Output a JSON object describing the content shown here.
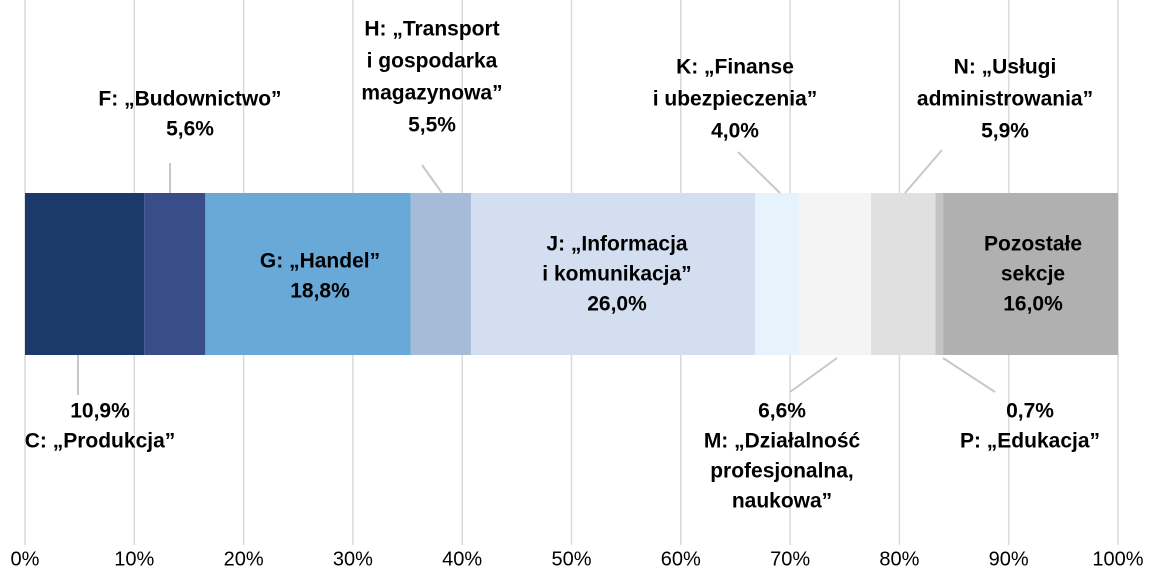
{
  "chart_data": {
    "type": "stacked_bar_horizontal",
    "series": [
      {
        "name": [
          "C: „Produkcja”"
        ],
        "color": "#1b3a6b",
        "values": [
          10.9
        ],
        "value_labels": [
          "10,9%"
        ]
      },
      {
        "name": [
          "F: „Budownictwo”"
        ],
        "color": "#394e89",
        "values": [
          5.6
        ],
        "value_labels": [
          "5,6%"
        ]
      },
      {
        "name": [
          "G: „Handel”"
        ],
        "color": "#68a9d8",
        "values": [
          18.8
        ],
        "value_labels": [
          "18,8%"
        ]
      },
      {
        "name": [
          "H: „Transport",
          "i gospodarka",
          "magazynowa”"
        ],
        "color": "#a5bbd7",
        "values": [
          5.5
        ],
        "value_labels": [
          "5,5%"
        ]
      },
      {
        "name": [
          "J: „Informacja",
          "i komunikacja”"
        ],
        "color": "#d3def1",
        "values": [
          26.0
        ],
        "value_labels": [
          "26,0%"
        ]
      },
      {
        "name": [
          "K: „Finanse",
          "i ubezpieczenia”"
        ],
        "color": "#e6f3fc",
        "values": [
          4.0
        ],
        "value_labels": [
          "4,0%"
        ]
      },
      {
        "name": [
          "M: „Działalność",
          "profesjonalna,",
          "naukowa”"
        ],
        "color": "#f4f4f4",
        "values": [
          6.6
        ],
        "value_labels": [
          "6,6%"
        ]
      },
      {
        "name": [
          "N: „Usługi",
          "administrowania”"
        ],
        "color": "#e0e0e0",
        "values": [
          5.9
        ],
        "value_labels": [
          "5,9%"
        ]
      },
      {
        "name": [
          "P: „Edukacja”"
        ],
        "color": "#c4c4c4",
        "values": [
          0.7
        ],
        "value_labels": [
          "0,7%"
        ]
      },
      {
        "name": [
          "Pozostałe",
          "sekcje"
        ],
        "color": "#b0b0b0",
        "values": [
          16.0
        ],
        "value_labels": [
          "16,0%"
        ]
      }
    ],
    "xlim": [
      0,
      100
    ],
    "xticks": [
      {
        "value": 0,
        "label": "0%"
      },
      {
        "value": 10,
        "label": "10%"
      },
      {
        "value": 20,
        "label": "20%"
      },
      {
        "value": 30,
        "label": "30%"
      },
      {
        "value": 40,
        "label": "40%"
      },
      {
        "value": 50,
        "label": "50%"
      },
      {
        "value": 60,
        "label": "60%"
      },
      {
        "value": 70,
        "label": "70%"
      },
      {
        "value": 80,
        "label": "80%"
      },
      {
        "value": 90,
        "label": "90%"
      },
      {
        "value": 100,
        "label": "100%"
      }
    ],
    "grid": true
  }
}
